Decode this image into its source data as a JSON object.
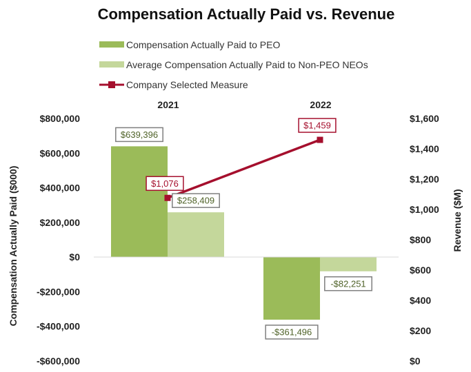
{
  "chart_data": {
    "type": "bar+line",
    "title": "Compensation Actually Paid vs. Revenue",
    "categories": [
      "2021",
      "2022"
    ],
    "series": [
      {
        "name": "Compensation Actually Paid to PEO",
        "axis": "left",
        "kind": "bar",
        "values": [
          639396,
          -361496
        ],
        "labels": [
          "$639,396",
          "-$361,496"
        ],
        "color": "#9bbb59"
      },
      {
        "name": "Average Compensation Actually Paid to Non-PEO NEOs",
        "axis": "left",
        "kind": "bar",
        "values": [
          258409,
          -82251
        ],
        "labels": [
          "$258,409",
          "-$82,251"
        ],
        "color": "#c4d79b"
      },
      {
        "name": "Company Selected Measure",
        "axis": "right",
        "kind": "line",
        "values": [
          1076,
          1459
        ],
        "labels": [
          "$1,076",
          "$1,459"
        ],
        "color": "#a50f2d"
      }
    ],
    "y_left": {
      "label": "Compensation Actually Paid ($000)",
      "range": [
        -600000,
        800000
      ],
      "ticks": [
        800000,
        600000,
        400000,
        200000,
        0,
        -200000,
        -400000,
        -600000
      ],
      "tick_labels": [
        "$800,000",
        "$600,000",
        "$400,000",
        "$200,000",
        "$0",
        "-$200,000",
        "-$400,000",
        "-$600,000"
      ]
    },
    "y_right": {
      "label": "Revenue ($M)",
      "range": [
        0,
        1600
      ],
      "ticks": [
        1600,
        1400,
        1200,
        1000,
        800,
        600,
        400,
        200,
        0
      ],
      "tick_labels": [
        "$1,600",
        "$1,400",
        "$1,200",
        "$1,000",
        "$800",
        "$600",
        "$400",
        "$200",
        "$0"
      ]
    },
    "legend_position": "top",
    "grid": false,
    "colors": {
      "label_border_bar": "#7f7f7f",
      "label_text_bar": "#4f6228",
      "label_text_line": "#a50f2d"
    }
  }
}
